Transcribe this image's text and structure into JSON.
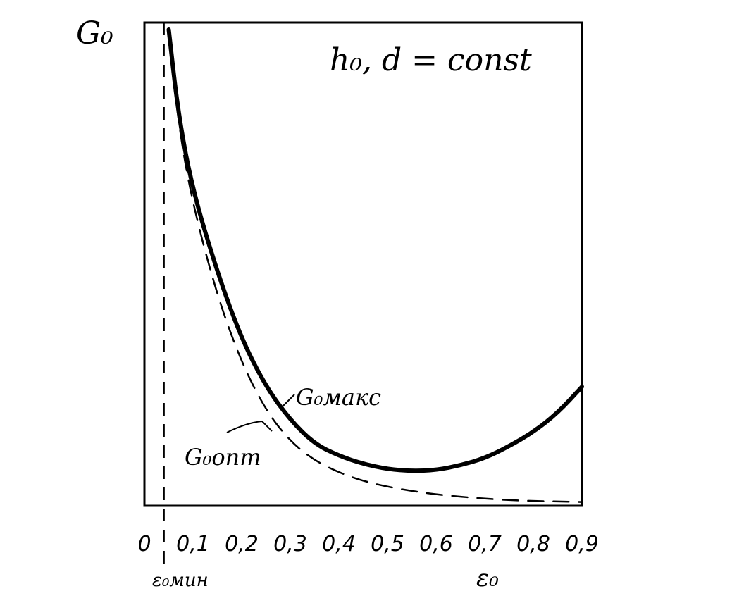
{
  "chart_data": {
    "type": "line",
    "ylabel": "G₀",
    "xlabel": "ε₀",
    "annotation": "h₀, d = const",
    "x_marker_label": "ε₀мин",
    "x_marker_value": 0.04,
    "xlim": [
      0,
      0.9
    ],
    "ylim": [
      0,
      1
    ],
    "x_ticks": [
      "0",
      "0,1",
      "0,2",
      "0,3",
      "0,4",
      "0,5",
      "0,6",
      "0,7",
      "0,8",
      "0,9"
    ],
    "y_ticks": [],
    "grid": false,
    "series": [
      {
        "name": "G₀макс",
        "style": "solid",
        "x": [
          0.05,
          0.07,
          0.1,
          0.15,
          0.2,
          0.25,
          0.3,
          0.35,
          0.4,
          0.45,
          0.5,
          0.55,
          0.6,
          0.65,
          0.7,
          0.75,
          0.8,
          0.85,
          0.9
        ],
        "y": [
          1.0,
          0.82,
          0.66,
          0.49,
          0.35,
          0.25,
          0.18,
          0.13,
          0.105,
          0.088,
          0.077,
          0.073,
          0.075,
          0.085,
          0.1,
          0.125,
          0.155,
          0.195,
          0.25
        ]
      },
      {
        "name": "G₀опт",
        "style": "dashed",
        "x": [
          0.05,
          0.07,
          0.1,
          0.15,
          0.2,
          0.25,
          0.3,
          0.35,
          0.4,
          0.45,
          0.5,
          0.55,
          0.6,
          0.65,
          0.7,
          0.75,
          0.8,
          0.85,
          0.9
        ],
        "y": [
          1.0,
          0.8,
          0.63,
          0.44,
          0.3,
          0.2,
          0.135,
          0.095,
          0.07,
          0.052,
          0.04,
          0.031,
          0.024,
          0.019,
          0.015,
          0.012,
          0.01,
          0.009,
          0.008
        ]
      }
    ]
  }
}
